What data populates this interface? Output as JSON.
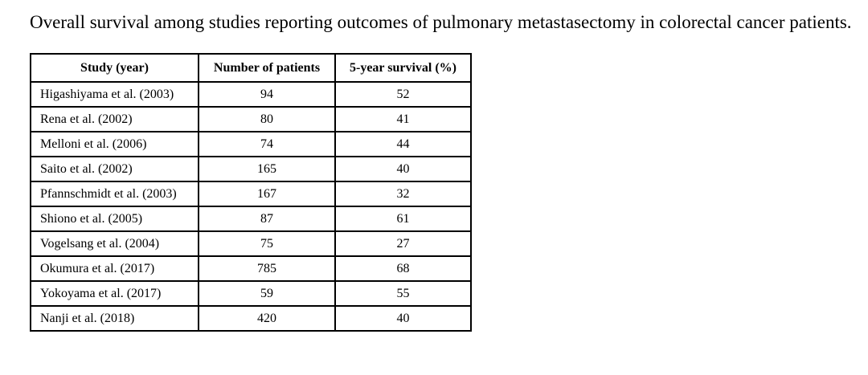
{
  "caption": "Overall survival among studies reporting outcomes of pulmonary metastasectomy in colorectal cancer patients.",
  "table": {
    "headers": [
      "Study (year)",
      "Number of patients",
      "5-year survival (%)"
    ],
    "rows": [
      {
        "study": "Higashiyama et al. (2003)",
        "patients": "94",
        "survival": "52"
      },
      {
        "study": "Rena et al. (2002)",
        "patients": "80",
        "survival": "41"
      },
      {
        "study": "Melloni et al. (2006)",
        "patients": "74",
        "survival": "44"
      },
      {
        "study": "Saito et al. (2002)",
        "patients": "165",
        "survival": "40"
      },
      {
        "study": "Pfannschmidt et al. (2003)",
        "patients": "167",
        "survival": "32"
      },
      {
        "study": "Shiono et al. (2005)",
        "patients": "87",
        "survival": "61"
      },
      {
        "study": "Vogelsang et al. (2004)",
        "patients": "75",
        "survival": "27"
      },
      {
        "study": "Okumura et al. (2017)",
        "patients": "785",
        "survival": "68"
      },
      {
        "study": "Yokoyama et al. (2017)",
        "patients": "59",
        "survival": "55"
      },
      {
        "study": "Nanji et al. (2018)",
        "patients": "420",
        "survival": "40"
      }
    ]
  }
}
